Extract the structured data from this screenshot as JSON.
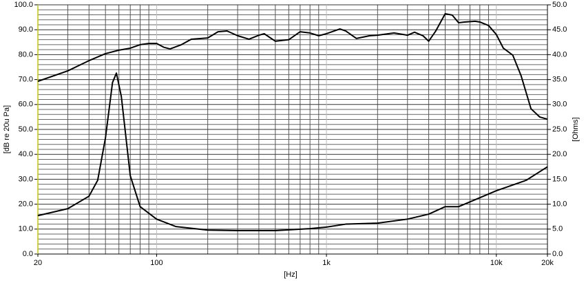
{
  "chart_data": {
    "type": "line",
    "xlabel": "[Hz]",
    "ylabel": "[dB re 20u Pa]",
    "y2label": "[Ohms]",
    "xscale": "log",
    "xlim": [
      20,
      20000
    ],
    "xticks": [
      20,
      100,
      {
        "value": 1000,
        "label": "1k"
      },
      {
        "value": 10000,
        "label": "10k"
      },
      {
        "value": 20000,
        "label": "20k"
      }
    ],
    "xminor": [
      30,
      40,
      50,
      60,
      70,
      80,
      90,
      200,
      300,
      400,
      500,
      600,
      700,
      800,
      900,
      2000,
      3000,
      4000,
      5000,
      6000,
      7000,
      8000,
      9000
    ],
    "ylim": [
      0,
      100
    ],
    "yticks": [
      {
        "value": 0,
        "label": "0.0"
      },
      {
        "value": 10,
        "label": "10.0"
      },
      {
        "value": 20,
        "label": "20.0"
      },
      {
        "value": 30,
        "label": "30.0"
      },
      {
        "value": 40,
        "label": "40.0"
      },
      {
        "value": 50,
        "label": "50.0"
      },
      {
        "value": 60,
        "label": "60.0"
      },
      {
        "value": 70,
        "label": "70.0"
      },
      {
        "value": 80,
        "label": "80.0"
      },
      {
        "value": 90,
        "label": "90.0"
      },
      {
        "value": 100,
        "label": "100.0"
      }
    ],
    "yminor": [
      2,
      4,
      6,
      8,
      12,
      14,
      16,
      18,
      22,
      24,
      26,
      28,
      32,
      34,
      36,
      38,
      42,
      44,
      46,
      48,
      52,
      54,
      56,
      58,
      62,
      64,
      66,
      68,
      72,
      74,
      76,
      78,
      82,
      84,
      86,
      88,
      92,
      94,
      96,
      98
    ],
    "y2lim": [
      0,
      50
    ],
    "y2ticks": [
      {
        "value": 0,
        "label": "0.0"
      },
      {
        "value": 5,
        "label": "5.0"
      },
      {
        "value": 10,
        "label": "10.0"
      },
      {
        "value": 15,
        "label": "15.0"
      },
      {
        "value": 20,
        "label": "20.0"
      },
      {
        "value": 25,
        "label": "25.0"
      },
      {
        "value": 30,
        "label": "30.0"
      },
      {
        "value": 35,
        "label": "35.0"
      },
      {
        "value": 40,
        "label": "40.0"
      },
      {
        "value": 45,
        "label": "45.0"
      },
      {
        "value": 50,
        "label": "50.0"
      }
    ],
    "grid": true,
    "series": [
      {
        "color": "#000000",
        "x": [
          20,
          30,
          40,
          50,
          60,
          70,
          80,
          90,
          100,
          110,
          120,
          140,
          160,
          200,
          230,
          260,
          300,
          350,
          400,
          430,
          500,
          600,
          700,
          800,
          900,
          1000,
          1200,
          1300,
          1500,
          1800,
          2000,
          2500,
          3000,
          3300,
          3700,
          4000,
          4400,
          5000,
          5500,
          6000,
          6500,
          7500,
          8000,
          9000,
          10000,
          11000,
          12500,
          14000,
          16000,
          18000,
          20000
        ],
        "values": [
          69.3,
          73.5,
          77.6,
          80.4,
          81.8,
          82.6,
          84,
          84.5,
          84.5,
          83,
          82.3,
          84,
          86.2,
          86.7,
          89.2,
          89.5,
          87.6,
          86.2,
          87.8,
          88.4,
          85.4,
          86,
          89.2,
          88.7,
          87.6,
          88.4,
          90.3,
          89.5,
          86.5,
          87.6,
          87.8,
          88.7,
          87.8,
          89,
          87.6,
          85.4,
          89.5,
          96.4,
          95.9,
          92.8,
          93.1,
          93.4,
          93.1,
          91.7,
          88.1,
          82.6,
          79.8,
          71.5,
          58.3,
          55,
          54.1
        ]
      },
      {
        "color": "#000000",
        "axis": "y2",
        "x": [
          20,
          30,
          40,
          45,
          50,
          55,
          58,
          62,
          70,
          80,
          100,
          130,
          200,
          300,
          500,
          800,
          1000,
          1300,
          2000,
          3000,
          4000,
          5000,
          6000,
          8000,
          10000,
          15000,
          20000
        ],
        "values": [
          7.7,
          9.1,
          11.6,
          14.8,
          23.3,
          34.4,
          36.3,
          31.6,
          15.7,
          9.5,
          7,
          5.5,
          4.8,
          4.7,
          4.7,
          5.1,
          5.4,
          6,
          6.2,
          7,
          8,
          9.5,
          9.5,
          11.3,
          12.7,
          14.8,
          17.5
        ]
      }
    ]
  }
}
